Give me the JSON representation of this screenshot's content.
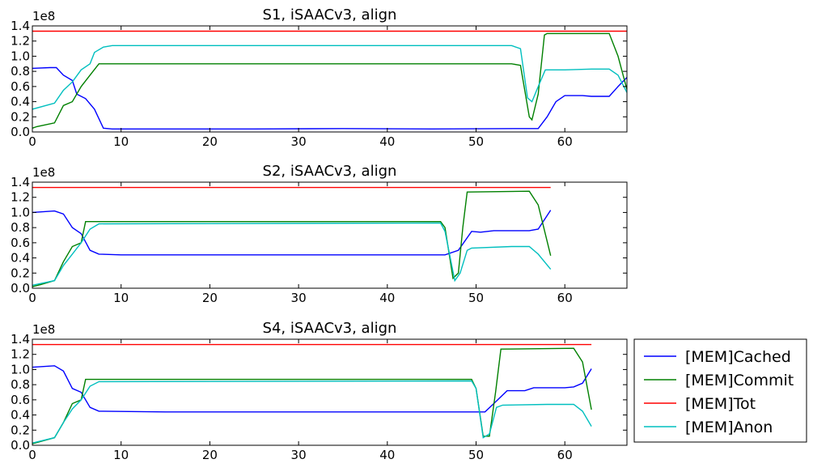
{
  "chart_data": [
    {
      "type": "line",
      "title": "S1, iSAACv3, align",
      "multiplier": "1e8",
      "xlim": [
        0,
        67
      ],
      "ylim": [
        0,
        1.4
      ],
      "xticks": [
        "0",
        "10",
        "20",
        "30",
        "40",
        "50",
        "60"
      ],
      "yticks": [
        "0.0",
        "0.2",
        "0.4",
        "0.6",
        "0.8",
        "1.0",
        "1.2",
        "1.4"
      ],
      "series": [
        {
          "name": "[MEM]Cached",
          "color": "#0000ff",
          "points": [
            [
              0,
              0.84
            ],
            [
              2,
              0.85
            ],
            [
              2.7,
              0.85
            ],
            [
              3.5,
              0.75
            ],
            [
              4.5,
              0.68
            ],
            [
              5,
              0.5
            ],
            [
              6,
              0.44
            ],
            [
              7,
              0.3
            ],
            [
              8,
              0.05
            ],
            [
              9,
              0.04
            ],
            [
              15,
              0.04
            ],
            [
              25,
              0.04
            ],
            [
              35,
              0.045
            ],
            [
              45,
              0.04
            ],
            [
              55,
              0.045
            ],
            [
              57,
              0.045
            ],
            [
              58,
              0.2
            ],
            [
              59,
              0.4
            ],
            [
              60,
              0.48
            ],
            [
              62,
              0.48
            ],
            [
              63,
              0.47
            ],
            [
              65,
              0.47
            ],
            [
              66,
              0.6
            ],
            [
              67,
              0.72
            ]
          ]
        },
        {
          "name": "[MEM]Commit",
          "color": "#008000",
          "points": [
            [
              0,
              0.05
            ],
            [
              0.5,
              0.07
            ],
            [
              2.5,
              0.12
            ],
            [
              3.5,
              0.35
            ],
            [
              4.5,
              0.4
            ],
            [
              5.5,
              0.6
            ],
            [
              6.5,
              0.75
            ],
            [
              7.5,
              0.9
            ],
            [
              54,
              0.9
            ],
            [
              55,
              0.88
            ],
            [
              56,
              0.2
            ],
            [
              56.3,
              0.16
            ],
            [
              57,
              0.5
            ],
            [
              57.7,
              1.28
            ],
            [
              58,
              1.3
            ],
            [
              65,
              1.3
            ],
            [
              66,
              1.0
            ],
            [
              67,
              0.56
            ]
          ]
        },
        {
          "name": "[MEM]Tot",
          "color": "#ff0000",
          "points": [
            [
              0,
              1.33
            ],
            [
              67,
              1.33
            ]
          ]
        },
        {
          "name": "[MEM]Anon",
          "color": "#00bfbf",
          "points": [
            [
              0,
              0.3
            ],
            [
              2.5,
              0.38
            ],
            [
              3.5,
              0.55
            ],
            [
              4.5,
              0.66
            ],
            [
              5.5,
              0.82
            ],
            [
              6.5,
              0.9
            ],
            [
              7,
              1.05
            ],
            [
              8,
              1.12
            ],
            [
              9,
              1.14
            ],
            [
              54,
              1.14
            ],
            [
              55,
              1.1
            ],
            [
              55.8,
              0.45
            ],
            [
              56.3,
              0.4
            ],
            [
              57,
              0.6
            ],
            [
              57.8,
              0.82
            ],
            [
              60,
              0.82
            ],
            [
              63,
              0.83
            ],
            [
              65,
              0.83
            ],
            [
              66,
              0.75
            ],
            [
              67,
              0.52
            ]
          ]
        }
      ]
    },
    {
      "type": "line",
      "title": "S2, iSAACv3, align",
      "multiplier": "1e8",
      "xlim": [
        0,
        67
      ],
      "ylim": [
        0,
        1.4
      ],
      "xticks": [
        "0",
        "10",
        "20",
        "30",
        "40",
        "50",
        "60"
      ],
      "yticks": [
        "0.0",
        "0.2",
        "0.4",
        "0.6",
        "0.8",
        "1.0",
        "1.2",
        "1.4"
      ],
      "series": [
        {
          "name": "[MEM]Cached",
          "color": "#0000ff",
          "points": [
            [
              0,
              1.0
            ],
            [
              2.5,
              1.02
            ],
            [
              3.5,
              0.98
            ],
            [
              4.5,
              0.8
            ],
            [
              5.5,
              0.72
            ],
            [
              6.5,
              0.5
            ],
            [
              7.5,
              0.45
            ],
            [
              10,
              0.44
            ],
            [
              20,
              0.44
            ],
            [
              30,
              0.44
            ],
            [
              40,
              0.44
            ],
            [
              46.5,
              0.44
            ],
            [
              48,
              0.5
            ],
            [
              49.5,
              0.75
            ],
            [
              50.5,
              0.74
            ],
            [
              52,
              0.76
            ],
            [
              56,
              0.76
            ],
            [
              57,
              0.78
            ],
            [
              58.4,
              1.03
            ]
          ]
        },
        {
          "name": "[MEM]Commit",
          "color": "#008000",
          "points": [
            [
              0,
              0.02
            ],
            [
              1,
              0.05
            ],
            [
              2.5,
              0.1
            ],
            [
              3.5,
              0.35
            ],
            [
              4.5,
              0.55
            ],
            [
              5.5,
              0.6
            ],
            [
              6,
              0.88
            ],
            [
              46,
              0.88
            ],
            [
              46.5,
              0.8
            ],
            [
              47.4,
              0.13
            ],
            [
              48,
              0.2
            ],
            [
              48.5,
              0.8
            ],
            [
              49,
              1.27
            ],
            [
              56,
              1.28
            ],
            [
              57,
              1.1
            ],
            [
              58.4,
              0.43
            ]
          ]
        },
        {
          "name": "[MEM]Tot",
          "color": "#ff0000",
          "points": [
            [
              0,
              1.33
            ],
            [
              58.4,
              1.33
            ]
          ]
        },
        {
          "name": "[MEM]Anon",
          "color": "#00bfbf",
          "points": [
            [
              0,
              0.04
            ],
            [
              2.5,
              0.1
            ],
            [
              3.5,
              0.3
            ],
            [
              4.5,
              0.45
            ],
            [
              5.5,
              0.6
            ],
            [
              6.5,
              0.78
            ],
            [
              7.5,
              0.85
            ],
            [
              46,
              0.86
            ],
            [
              46.5,
              0.75
            ],
            [
              47.6,
              0.1
            ],
            [
              48.2,
              0.2
            ],
            [
              49,
              0.5
            ],
            [
              49.5,
              0.53
            ],
            [
              54,
              0.55
            ],
            [
              56,
              0.55
            ],
            [
              57,
              0.45
            ],
            [
              58.4,
              0.25
            ]
          ]
        }
      ]
    },
    {
      "type": "line",
      "title": "S4, iSAACv3, align",
      "multiplier": "1e8",
      "xlim": [
        0,
        67
      ],
      "ylim": [
        0,
        1.4
      ],
      "xticks": [
        "0",
        "10",
        "20",
        "30",
        "40",
        "50",
        "60"
      ],
      "yticks": [
        "0.0",
        "0.2",
        "0.4",
        "0.6",
        "0.8",
        "1.0",
        "1.2",
        "1.4"
      ],
      "series": [
        {
          "name": "[MEM]Cached",
          "color": "#0000ff",
          "points": [
            [
              0,
              1.03
            ],
            [
              2.5,
              1.05
            ],
            [
              3.5,
              0.98
            ],
            [
              4.5,
              0.75
            ],
            [
              5.5,
              0.7
            ],
            [
              6.5,
              0.5
            ],
            [
              7.5,
              0.45
            ],
            [
              15,
              0.44
            ],
            [
              25,
              0.44
            ],
            [
              35,
              0.44
            ],
            [
              45,
              0.44
            ],
            [
              51,
              0.44
            ],
            [
              52,
              0.55
            ],
            [
              53.5,
              0.72
            ],
            [
              55.5,
              0.72
            ],
            [
              56.5,
              0.76
            ],
            [
              60,
              0.76
            ],
            [
              61,
              0.77
            ],
            [
              62,
              0.82
            ],
            [
              63,
              1.01
            ]
          ]
        },
        {
          "name": "[MEM]Commit",
          "color": "#008000",
          "points": [
            [
              0,
              0.02
            ],
            [
              2.5,
              0.1
            ],
            [
              3.5,
              0.3
            ],
            [
              4.5,
              0.55
            ],
            [
              5.5,
              0.6
            ],
            [
              6,
              0.87
            ],
            [
              49.5,
              0.87
            ],
            [
              50,
              0.75
            ],
            [
              50.8,
              0.12
            ],
            [
              51.5,
              0.12
            ],
            [
              52.2,
              0.7
            ],
            [
              52.8,
              1.27
            ],
            [
              61,
              1.28
            ],
            [
              62,
              1.1
            ],
            [
              63,
              0.47
            ]
          ]
        },
        {
          "name": "[MEM]Tot",
          "color": "#ff0000",
          "points": [
            [
              0,
              1.33
            ],
            [
              63,
              1.33
            ]
          ]
        },
        {
          "name": "[MEM]Anon",
          "color": "#00bfbf",
          "points": [
            [
              0,
              0.03
            ],
            [
              2.5,
              0.1
            ],
            [
              3.5,
              0.3
            ],
            [
              4.5,
              0.48
            ],
            [
              5.5,
              0.6
            ],
            [
              6.5,
              0.78
            ],
            [
              7.5,
              0.84
            ],
            [
              49.5,
              0.85
            ],
            [
              50,
              0.75
            ],
            [
              50.8,
              0.1
            ],
            [
              51.5,
              0.15
            ],
            [
              52.3,
              0.5
            ],
            [
              53,
              0.53
            ],
            [
              58,
              0.54
            ],
            [
              61,
              0.54
            ],
            [
              62,
              0.45
            ],
            [
              63,
              0.25
            ]
          ]
        }
      ]
    }
  ],
  "legend": {
    "placement": "right-of-bottom-plot",
    "entries": [
      {
        "label": "[MEM]Cached",
        "color": "#0000ff"
      },
      {
        "label": "[MEM]Commit",
        "color": "#008000"
      },
      {
        "label": "[MEM]Tot",
        "color": "#ff0000"
      },
      {
        "label": "[MEM]Anon",
        "color": "#00bfbf"
      }
    ]
  }
}
